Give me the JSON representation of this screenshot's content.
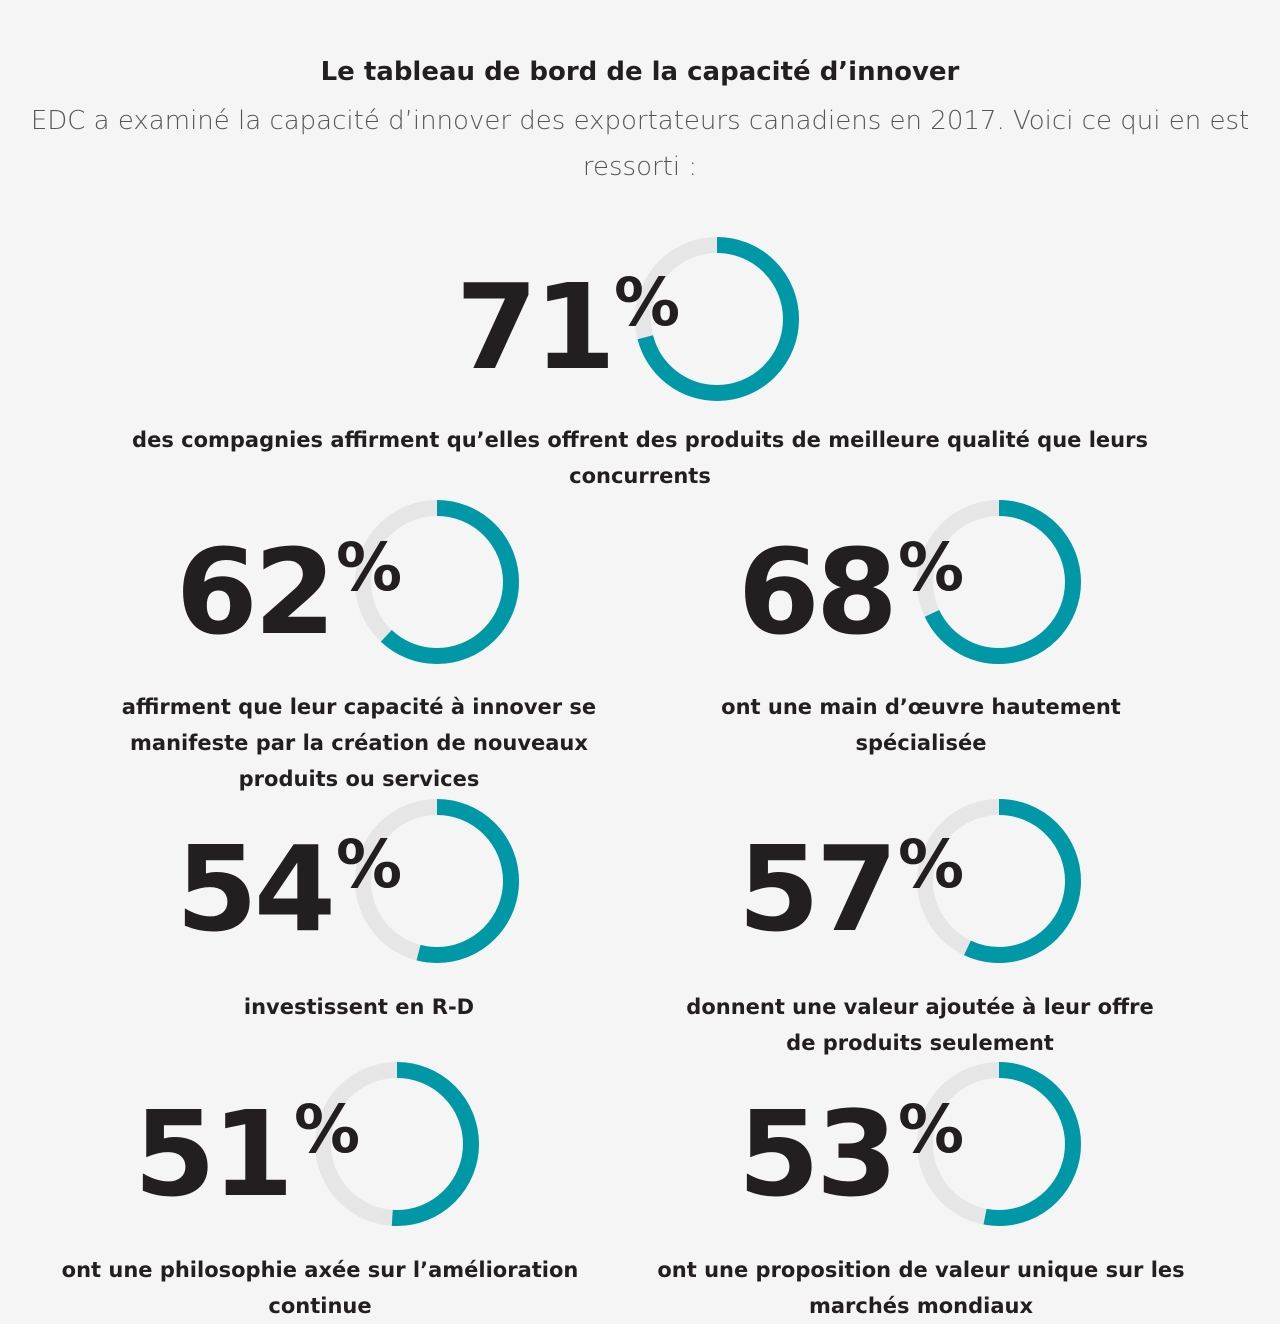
{
  "header": {
    "title": "Le tableau de bord de la capacité d’innover",
    "subtitle": "EDC a examiné la capacité d’innover des exportateurs canadiens en 2017. Voici ce qui en est ressorti :"
  },
  "colors": {
    "accent": "#0097a7",
    "track": "#e6e6e6",
    "text": "#231f20"
  },
  "chart_data": {
    "type": "donut",
    "percent_symbol": "%",
    "items": [
      {
        "value": 71,
        "label": "71",
        "caption": "des compagnies affirment qu’elles offrent des produits de meilleure qualité que leurs concurrents"
      },
      {
        "value": 62,
        "label": "62",
        "caption": "affirment que leur capacité à innover se manifeste par la création de nouveaux produits ou services"
      },
      {
        "value": 68,
        "label": "68",
        "caption": "ont une main d’œuvre hautement spécialisée"
      },
      {
        "value": 54,
        "label": "54",
        "caption": "investissent en R-D"
      },
      {
        "value": 57,
        "label": "57",
        "caption": "donnent une valeur ajoutée à leur offre de produits seulement"
      },
      {
        "value": 51,
        "label": "51",
        "caption": "ont une philosophie axée sur l’amélioration continue"
      },
      {
        "value": 53,
        "label": "53",
        "caption": "ont une proposition de valeur unique sur les marchés mondiaux"
      }
    ]
  }
}
